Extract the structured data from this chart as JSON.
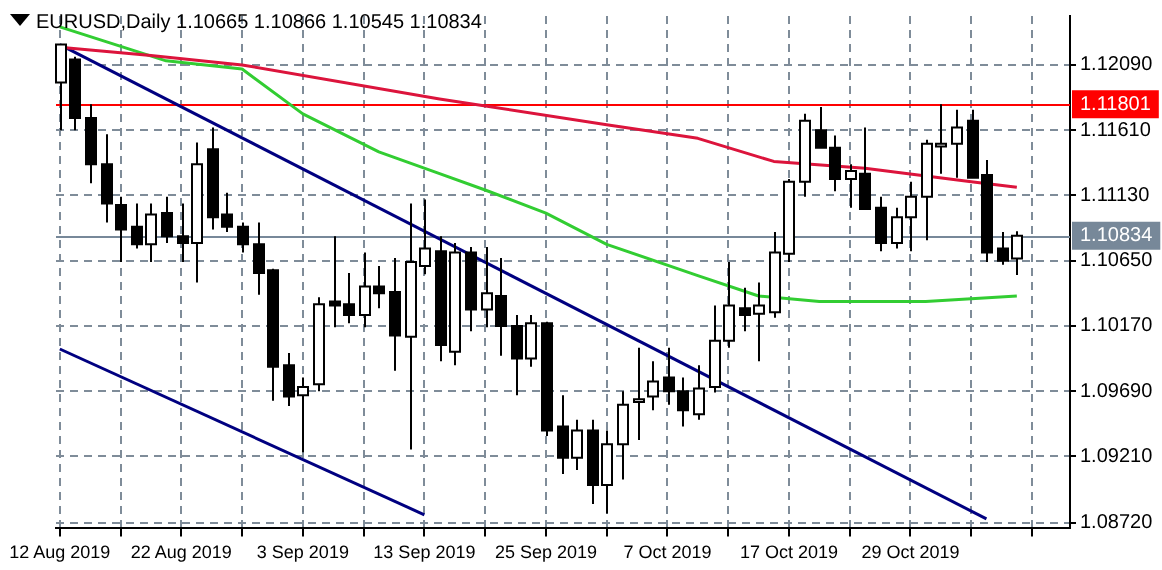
{
  "chart_data": {
    "type": "candlestick",
    "title": "EURUSD,Daily 1.10665 1.10866 1.10545 1.10834",
    "categories": [
      "12 Aug 2019",
      null,
      null,
      null,
      null,
      null,
      null,
      null,
      "22 Aug 2019",
      null,
      null,
      null,
      null,
      null,
      null,
      null,
      "3 Sep 2019",
      null,
      null,
      null,
      null,
      null,
      null,
      null,
      "13 Sep 2019",
      null,
      null,
      null,
      null,
      null,
      null,
      null,
      "25 Sep 2019",
      null,
      null,
      null,
      null,
      null,
      null,
      null,
      "7 Oct 2019",
      null,
      null,
      null,
      null,
      null,
      null,
      null,
      "17 Oct 2019",
      null,
      null,
      null,
      null,
      null,
      null,
      null,
      "29 Oct 2019",
      null,
      null,
      null,
      null,
      null,
      null,
      null
    ],
    "ohlc": [
      [
        1.1196,
        1.1224,
        1.1161,
        1.1224
      ],
      [
        1.1213,
        1.1215,
        1.1161,
        1.117
      ],
      [
        1.117,
        1.118,
        1.1122,
        1.1136
      ],
      [
        1.1136,
        1.1158,
        1.1093,
        1.1107
      ],
      [
        1.1106,
        1.1112,
        1.1064,
        1.1088
      ],
      [
        1.109,
        1.1107,
        1.1074,
        1.1077
      ],
      [
        1.1077,
        1.1107,
        1.1064,
        1.1099
      ],
      [
        1.11,
        1.1112,
        1.1078,
        1.1083
      ],
      [
        1.1083,
        1.1107,
        1.1064,
        1.1078
      ],
      [
        1.1078,
        1.1152,
        1.1049,
        1.1136
      ],
      [
        1.1147,
        1.1163,
        1.1088,
        1.1097
      ],
      [
        1.1099,
        1.1115,
        1.1086,
        1.109
      ],
      [
        1.109,
        1.1093,
        1.1071,
        1.1077
      ],
      [
        1.1077,
        1.1093,
        1.104,
        1.1056
      ],
      [
        1.1058,
        1.1059,
        1.0962,
        1.0987
      ],
      [
        1.0988,
        1.0997,
        1.0958,
        1.0965
      ],
      [
        1.0966,
        1.0979,
        1.0924,
        1.0972
      ],
      [
        1.0974,
        1.1038,
        1.0969,
        1.1033
      ],
      [
        1.1035,
        1.1083,
        1.1016,
        1.1032
      ],
      [
        1.1033,
        1.1056,
        1.1019,
        1.1025
      ],
      [
        1.1025,
        1.1071,
        1.1016,
        1.1046
      ],
      [
        1.1046,
        1.1061,
        1.103,
        1.1041
      ],
      [
        1.1042,
        1.1067,
        1.0984,
        1.101
      ],
      [
        1.1009,
        1.1107,
        1.0926,
        1.1064
      ],
      [
        1.1061,
        1.111,
        1.1055,
        1.1074
      ],
      [
        1.1072,
        1.1083,
        1.0991,
        1.1003
      ],
      [
        1.0998,
        1.1078,
        1.0988,
        1.1071
      ],
      [
        1.1071,
        1.1075,
        1.1013,
        1.1029
      ],
      [
        1.1029,
        1.1075,
        1.1016,
        1.1041
      ],
      [
        1.1039,
        1.1067,
        1.0995,
        1.1017
      ],
      [
        1.1017,
        1.1025,
        1.0966,
        1.0993
      ],
      [
        1.0993,
        1.1025,
        1.0987,
        1.1019
      ],
      [
        1.1019,
        1.102,
        1.0936,
        1.094
      ],
      [
        1.0943,
        1.0966,
        1.0908,
        1.092
      ],
      [
        1.092,
        1.0948,
        1.0911,
        1.094
      ],
      [
        1.094,
        1.0948,
        1.0886,
        1.09
      ],
      [
        1.09,
        1.094,
        1.0879,
        1.093
      ],
      [
        1.093,
        1.0969,
        1.0904,
        1.0959
      ],
      [
        1.0961,
        1.1001,
        1.0933,
        1.0963
      ],
      [
        1.0965,
        1.0991,
        1.0955,
        1.0976
      ],
      [
        1.0979,
        1.1001,
        1.0959,
        1.0969
      ],
      [
        1.0969,
        1.0979,
        1.0943,
        1.0955
      ],
      [
        1.0952,
        1.0988,
        1.0948,
        1.0971
      ],
      [
        1.0972,
        1.1032,
        1.0968,
        1.1006
      ],
      [
        1.1006,
        1.1064,
        1.1001,
        1.1032
      ],
      [
        1.103,
        1.1045,
        1.1013,
        1.1025
      ],
      [
        1.1026,
        1.1049,
        1.0991,
        1.1032
      ],
      [
        1.1027,
        1.1086,
        1.1023,
        1.1071
      ],
      [
        1.107,
        1.1125,
        1.1064,
        1.1123
      ],
      [
        1.1123,
        1.1173,
        1.1112,
        1.1168
      ],
      [
        1.1161,
        1.1178,
        1.1148,
        1.1148
      ],
      [
        1.1148,
        1.1157,
        1.1116,
        1.1125
      ],
      [
        1.1125,
        1.1136,
        1.1104,
        1.1131
      ],
      [
        1.1129,
        1.1163,
        1.1103,
        1.1103
      ],
      [
        1.1104,
        1.1112,
        1.1072,
        1.1078
      ],
      [
        1.1078,
        1.1104,
        1.1074,
        1.1097
      ],
      [
        1.1097,
        1.1123,
        1.1072,
        1.1112
      ],
      [
        1.1112,
        1.1154,
        1.108,
        1.1151
      ],
      [
        1.1149,
        1.118,
        1.1129,
        1.1151
      ],
      [
        1.1151,
        1.1176,
        1.1126,
        1.1163
      ],
      [
        1.1168,
        1.1176,
        1.1126,
        1.1126
      ],
      [
        1.1128,
        1.1139,
        1.1064,
        1.1071
      ],
      [
        1.1074,
        1.1086,
        1.1062,
        1.1065
      ],
      [
        1.10665,
        1.10866,
        1.10545,
        1.10834
      ]
    ],
    "colors": [
      "#ffffff",
      "#000000",
      "#000000",
      "#000000",
      "#000000",
      "#000000",
      "#ffffff",
      "#000000",
      "#000000",
      "#ffffff",
      "#000000",
      "#000000",
      "#000000",
      "#000000",
      "#000000",
      "#000000",
      "#ffffff",
      "#ffffff",
      "#000000",
      "#000000",
      "#ffffff",
      "#000000",
      "#000000",
      "#ffffff",
      "#ffffff",
      "#000000",
      "#ffffff",
      "#000000",
      "#ffffff",
      "#000000",
      "#000000",
      "#ffffff",
      "#000000",
      "#000000",
      "#ffffff",
      "#000000",
      "#ffffff",
      "#ffffff",
      "#ffffff",
      "#ffffff",
      "#000000",
      "#000000",
      "#ffffff",
      "#ffffff",
      "#ffffff",
      "#000000",
      "#ffffff",
      "#ffffff",
      "#ffffff",
      "#ffffff",
      "#000000",
      "#000000",
      "#ffffff",
      "#000000",
      "#000000",
      "#ffffff",
      "#ffffff",
      "#ffffff",
      "#ffffff",
      "#ffffff",
      "#000000",
      "#000000",
      "#000000",
      "#ffffff"
    ],
    "series": [
      {
        "type": "line",
        "color": "#dc143c",
        "values": [
          1.1222,
          null,
          null,
          null,
          null,
          null,
          1.1216,
          null,
          null,
          null,
          null,
          null,
          1.1209,
          null,
          null,
          null,
          null,
          null,
          null,
          null,
          null,
          null,
          null,
          null,
          null,
          1.1184,
          null,
          null,
          null,
          null,
          null,
          null,
          null,
          null,
          null,
          null,
          1.1165,
          null,
          null,
          null,
          null,
          null,
          1.1155,
          null,
          null,
          null,
          null,
          1.1138,
          null,
          null,
          null,
          null,
          null,
          1.1133,
          null,
          null,
          null,
          null,
          null,
          null,
          1.1123,
          null,
          null,
          1.1119
        ]
      },
      {
        "type": "line",
        "color": "#32cd32",
        "values": [
          1.1237,
          null,
          null,
          null,
          null,
          null,
          null,
          1.1212,
          null,
          null,
          null,
          null,
          1.1206,
          null,
          null,
          null,
          1.1173,
          null,
          null,
          null,
          null,
          1.1145,
          null,
          null,
          null,
          1.1129,
          null,
          null,
          1.1117,
          null,
          null,
          null,
          1.11,
          null,
          null,
          null,
          1.1077,
          null,
          null,
          null,
          null,
          null,
          1.1054,
          null,
          null,
          null,
          1.1039,
          null,
          null,
          null,
          1.1035,
          null,
          null,
          null,
          null,
          null,
          null,
          1.1035,
          null,
          null,
          null,
          null,
          null,
          1.1039
        ]
      },
      {
        "type": "line",
        "color": "#000080",
        "values": [
          1.1224,
          null,
          null,
          null,
          null,
          null,
          null,
          null,
          null,
          null,
          null,
          null,
          null,
          null,
          null,
          null,
          null,
          null,
          null,
          null,
          null,
          null,
          null,
          null,
          null,
          null,
          null,
          null,
          null,
          null,
          null,
          null,
          null,
          null,
          null,
          null,
          null,
          null,
          null,
          null,
          null,
          null,
          null,
          null,
          null,
          null,
          null,
          null,
          null,
          null,
          null,
          null,
          null,
          null,
          null,
          null,
          null,
          null,
          null,
          null,
          null,
          1.0875,
          null,
          null
        ]
      },
      {
        "type": "line",
        "color": "#000080",
        "values": [
          1.1,
          null,
          null,
          null,
          null,
          null,
          null,
          null,
          null,
          null,
          null,
          null,
          null,
          null,
          null,
          null,
          null,
          null,
          null,
          null,
          null,
          null,
          null,
          null,
          1.0878,
          null,
          null,
          null,
          null,
          null,
          null,
          null,
          null,
          null,
          null,
          null,
          null,
          null,
          null,
          null,
          null,
          null,
          null,
          null,
          null,
          null,
          null,
          null,
          null,
          null,
          null,
          null,
          null,
          null,
          null,
          null,
          null,
          null,
          null,
          null,
          null,
          null,
          null,
          null
        ]
      }
    ],
    "ref_lines": [
      {
        "axis": "y",
        "value": 1.11801,
        "label": "1.11801",
        "color": "#ff0000"
      },
      {
        "axis": "y",
        "value": 1.10834,
        "label": "1.10834",
        "color": "#778899"
      }
    ],
    "ylim": [
      1.0868,
      1.1245
    ],
    "yticks": [
      {
        "value": 1.1209,
        "label": "1.12090"
      },
      {
        "value": 1.1161,
        "label": "1.11610"
      },
      {
        "value": 1.1113,
        "label": "1.11130"
      },
      {
        "value": 1.1065,
        "label": "1.10650"
      },
      {
        "value": 1.1017,
        "label": "1.10170"
      },
      {
        "value": 1.0969,
        "label": "1.09690"
      },
      {
        "value": 1.0921,
        "label": "1.09210"
      },
      {
        "value": 1.0872,
        "label": "1.08720"
      }
    ],
    "grid": true
  }
}
